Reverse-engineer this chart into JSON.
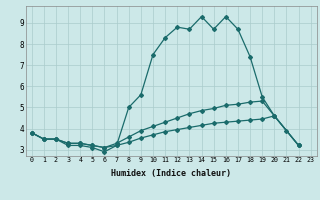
{
  "xlabel": "Humidex (Indice chaleur)",
  "bg_color": "#cce8e8",
  "grid_color": "#aacccc",
  "line_color": "#1a6b6b",
  "xlim": [
    -0.5,
    23.5
  ],
  "ylim": [
    2.7,
    9.8
  ],
  "xticks": [
    0,
    1,
    2,
    3,
    4,
    5,
    6,
    7,
    8,
    9,
    10,
    11,
    12,
    13,
    14,
    15,
    16,
    17,
    18,
    19,
    20,
    21,
    22,
    23
  ],
  "yticks": [
    3,
    4,
    5,
    6,
    7,
    8,
    9
  ],
  "series": [
    {
      "x": [
        0,
        1,
        2,
        3,
        4,
        5,
        6,
        7,
        8,
        9,
        10,
        11,
        12,
        13,
        14,
        15,
        16,
        17,
        18,
        19,
        20,
        21,
        22
      ],
      "y": [
        3.8,
        3.5,
        3.5,
        3.2,
        3.2,
        3.1,
        2.9,
        3.2,
        5.0,
        5.6,
        7.5,
        8.3,
        8.8,
        8.7,
        9.3,
        8.7,
        9.3,
        8.7,
        7.4,
        5.5,
        4.6,
        3.9,
        3.2
      ]
    },
    {
      "x": [
        0,
        1,
        2,
        3,
        4,
        5,
        6,
        7,
        8,
        9,
        10,
        11,
        12,
        13,
        14,
        15,
        16,
        17,
        18,
        19,
        20,
        22
      ],
      "y": [
        3.8,
        3.5,
        3.5,
        3.3,
        3.3,
        3.2,
        3.1,
        3.3,
        3.6,
        3.9,
        4.1,
        4.3,
        4.5,
        4.7,
        4.85,
        4.95,
        5.1,
        5.15,
        5.25,
        5.3,
        4.6,
        3.2
      ]
    },
    {
      "x": [
        0,
        1,
        2,
        3,
        4,
        5,
        6,
        7,
        8,
        9,
        10,
        11,
        12,
        13,
        14,
        15,
        16,
        17,
        18,
        19,
        20,
        22
      ],
      "y": [
        3.8,
        3.5,
        3.5,
        3.3,
        3.3,
        3.2,
        3.1,
        3.2,
        3.35,
        3.55,
        3.7,
        3.85,
        3.95,
        4.05,
        4.15,
        4.25,
        4.3,
        4.35,
        4.4,
        4.45,
        4.6,
        3.2
      ]
    }
  ]
}
